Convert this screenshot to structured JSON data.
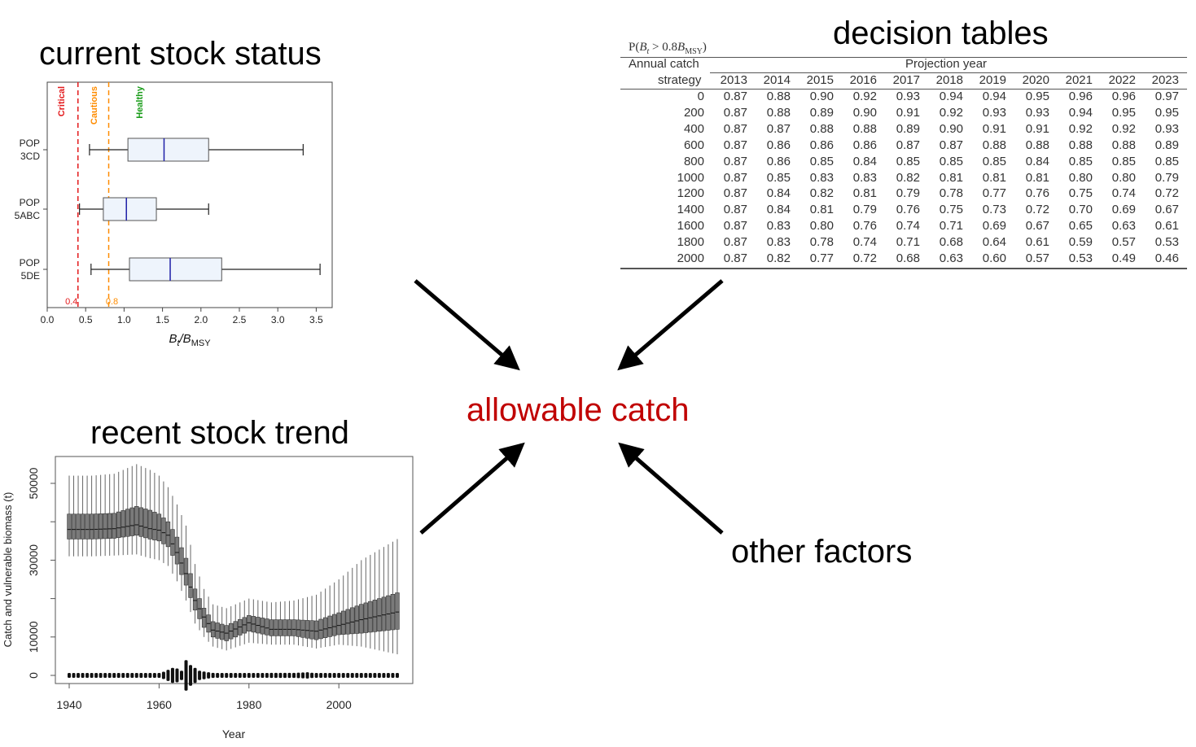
{
  "headings": {
    "status": "current stock status",
    "decision": "decision tables",
    "trend": "recent stock trend",
    "center": "allowable catch",
    "other": "other factors"
  },
  "colors": {
    "center_text": "#c00000",
    "critical": "#e31a1c",
    "cautious": "#ff8c00",
    "healthy": "#1a9c1a",
    "box_fill": "#eef4fc",
    "median": "#1f1fa8"
  },
  "status_chart": {
    "xlabel_main": "B",
    "xlabel_sub1": "t",
    "xlabel_mid": "/B",
    "xlabel_sub2": "MSY",
    "xticks": [
      "0.0",
      "0.5",
      "1.0",
      "1.5",
      "2.0",
      "2.5",
      "3.0",
      "3.5"
    ],
    "zones": [
      {
        "label": "Critical",
        "ref": "0.4",
        "x": 0.4,
        "color": "#e31a1c"
      },
      {
        "label": "Cautious",
        "ref": "0.8",
        "x": 0.8,
        "color": "#ff8c00"
      },
      {
        "label": "Healthy",
        "ref": "",
        "x": null,
        "color": "#1a9c1a"
      }
    ]
  },
  "decision_table": {
    "caption": "P(B_t > 0.8B_MSY)",
    "caption_main": "P(",
    "caption_b": "B",
    "caption_t": "t",
    "caption_mid": " > 0.8",
    "caption_b2": "B",
    "caption_msy": "MSY",
    "caption_end": ")",
    "row_header_1": "Annual catch",
    "row_header_2": "strategy",
    "column_group": "Projection year",
    "years": [
      "2013",
      "2014",
      "2015",
      "2016",
      "2017",
      "2018",
      "2019",
      "2020",
      "2021",
      "2022",
      "2023"
    ],
    "rows": [
      {
        "strategy": "0",
        "values": [
          "0.87",
          "0.88",
          "0.90",
          "0.92",
          "0.93",
          "0.94",
          "0.94",
          "0.95",
          "0.96",
          "0.96",
          "0.97"
        ]
      },
      {
        "strategy": "200",
        "values": [
          "0.87",
          "0.88",
          "0.89",
          "0.90",
          "0.91",
          "0.92",
          "0.93",
          "0.93",
          "0.94",
          "0.95",
          "0.95"
        ]
      },
      {
        "strategy": "400",
        "values": [
          "0.87",
          "0.87",
          "0.88",
          "0.88",
          "0.89",
          "0.90",
          "0.91",
          "0.91",
          "0.92",
          "0.92",
          "0.93"
        ]
      },
      {
        "strategy": "600",
        "values": [
          "0.87",
          "0.86",
          "0.86",
          "0.86",
          "0.87",
          "0.87",
          "0.88",
          "0.88",
          "0.88",
          "0.88",
          "0.89"
        ]
      },
      {
        "strategy": "800",
        "values": [
          "0.87",
          "0.86",
          "0.85",
          "0.84",
          "0.85",
          "0.85",
          "0.85",
          "0.84",
          "0.85",
          "0.85",
          "0.85"
        ]
      },
      {
        "strategy": "1000",
        "values": [
          "0.87",
          "0.85",
          "0.83",
          "0.83",
          "0.82",
          "0.81",
          "0.81",
          "0.81",
          "0.80",
          "0.80",
          "0.79"
        ]
      },
      {
        "strategy": "1200",
        "values": [
          "0.87",
          "0.84",
          "0.82",
          "0.81",
          "0.79",
          "0.78",
          "0.77",
          "0.76",
          "0.75",
          "0.74",
          "0.72"
        ]
      },
      {
        "strategy": "1400",
        "values": [
          "0.87",
          "0.84",
          "0.81",
          "0.79",
          "0.76",
          "0.75",
          "0.73",
          "0.72",
          "0.70",
          "0.69",
          "0.67"
        ]
      },
      {
        "strategy": "1600",
        "values": [
          "0.87",
          "0.83",
          "0.80",
          "0.76",
          "0.74",
          "0.71",
          "0.69",
          "0.67",
          "0.65",
          "0.63",
          "0.61"
        ]
      },
      {
        "strategy": "1800",
        "values": [
          "0.87",
          "0.83",
          "0.78",
          "0.74",
          "0.71",
          "0.68",
          "0.64",
          "0.61",
          "0.59",
          "0.57",
          "0.53"
        ]
      },
      {
        "strategy": "2000",
        "values": [
          "0.87",
          "0.82",
          "0.77",
          "0.72",
          "0.68",
          "0.63",
          "0.60",
          "0.57",
          "0.53",
          "0.49",
          "0.46"
        ]
      }
    ]
  },
  "chart_data": [
    {
      "type": "boxplot",
      "title": "current stock status",
      "xlabel": "B_t/B_MSY",
      "xlim": [
        0,
        3.6
      ],
      "reference_lines": [
        {
          "label": "Critical",
          "x": 0.4
        },
        {
          "label": "Cautious",
          "x": 0.8
        }
      ],
      "zone_labels": [
        "Critical",
        "Cautious",
        "Healthy"
      ],
      "series": [
        {
          "name": "POP 3CD",
          "label_1": "POP",
          "label_2": "3CD",
          "min": 0.55,
          "q1": 1.05,
          "median": 1.52,
          "q3": 2.1,
          "max": 3.33
        },
        {
          "name": "POP 5ABC",
          "label_1": "POP",
          "label_2": "5ABC",
          "min": 0.42,
          "q1": 0.73,
          "median": 1.03,
          "q3": 1.42,
          "max": 2.1
        },
        {
          "name": "POP 5DE",
          "label_1": "POP",
          "label_2": "5DE",
          "min": 0.57,
          "q1": 1.07,
          "median": 1.6,
          "q3": 2.27,
          "max": 3.55
        }
      ]
    },
    {
      "type": "boxplot",
      "title": "recent stock trend",
      "xlabel": "Year",
      "ylabel": "Catch and vulnerable biomass (t)",
      "xlim": [
        1940,
        2013
      ],
      "ylim": [
        0,
        55000
      ],
      "xticks": [
        "1940",
        "1960",
        "1980",
        "2000"
      ],
      "yticks": [
        "0",
        "10000",
        "30000",
        "50000"
      ],
      "biomass_anchor_years": [
        1940,
        1945,
        1950,
        1955,
        1958,
        1960,
        1962,
        1964,
        1966,
        1968,
        1970,
        1972,
        1975,
        1980,
        1985,
        1990,
        1995,
        2000,
        2005,
        2013
      ],
      "biomass_median": [
        38000,
        38000,
        38200,
        39200,
        38200,
        37800,
        36500,
        32000,
        26500,
        19500,
        15200,
        11800,
        11000,
        13700,
        12000,
        12000,
        11500,
        13000,
        14500,
        16500
      ],
      "biomass_q1": [
        35500,
        35500,
        35700,
        36500,
        35500,
        35000,
        33500,
        29000,
        23500,
        17000,
        12500,
        10000,
        9000,
        11500,
        10300,
        10300,
        9300,
        10600,
        11000,
        12000
      ],
      "biomass_q3": [
        42000,
        42000,
        42200,
        44000,
        43000,
        42000,
        40000,
        36000,
        30500,
        22500,
        17500,
        14000,
        13000,
        15600,
        14500,
        14500,
        14200,
        16300,
        18500,
        21500
      ],
      "biomass_min": [
        31000,
        31000,
        31200,
        31500,
        30500,
        30000,
        28500,
        24500,
        19500,
        13500,
        10000,
        7500,
        6500,
        8500,
        8000,
        8000,
        7000,
        8000,
        7500,
        5500
      ],
      "biomass_max": [
        52000,
        52000,
        52500,
        55000,
        53500,
        52000,
        49000,
        44500,
        39000,
        29000,
        22500,
        18500,
        17500,
        20000,
        19000,
        19500,
        21000,
        25000,
        30000,
        35500
      ],
      "catch_anchor_years": [
        1940,
        1955,
        1958,
        1960,
        1961,
        1962,
        1963,
        1964,
        1965,
        1966,
        1967,
        1968,
        1969,
        1970,
        1971,
        1972,
        1973,
        1975,
        1980,
        1985,
        1990,
        1993,
        1995,
        2000,
        2013
      ],
      "catch_values": [
        200,
        300,
        700,
        800,
        1500,
        2500,
        3500,
        3200,
        2000,
        7500,
        5000,
        3500,
        2000,
        1600,
        1200,
        900,
        700,
        400,
        500,
        900,
        900,
        1200,
        700,
        500,
        500
      ]
    }
  ]
}
